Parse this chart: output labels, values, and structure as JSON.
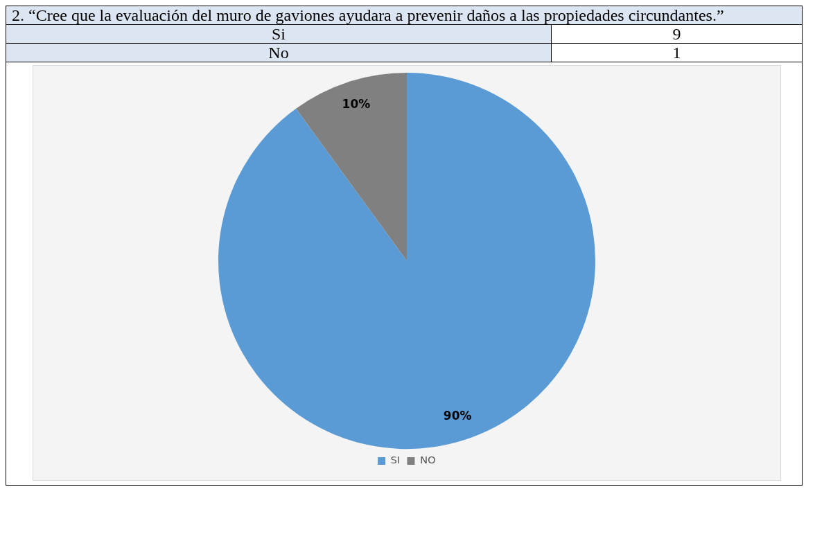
{
  "chart_data": {
    "type": "pie",
    "title": "2. “Cree que la evaluación del muro de gaviones ayudara a prevenir daños a las propiedades circundantes.”",
    "categories": [
      "SI",
      "NO"
    ],
    "values": [
      90,
      10
    ],
    "colors": [
      "#5b9bd5",
      "#808080"
    ],
    "value_labels": [
      "90%",
      "10%"
    ],
    "legend": "bottom",
    "annotations": [
      "Si",
      "9",
      "No",
      "1"
    ]
  }
}
